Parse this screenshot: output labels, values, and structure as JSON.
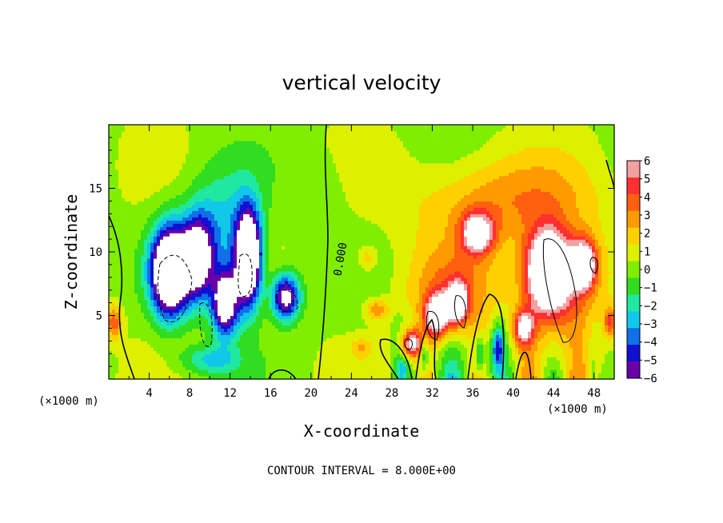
{
  "chart_data": {
    "type": "heatmap",
    "title": "vertical velocity",
    "xlabel": "X-coordinate",
    "ylabel": "Z-coordinate",
    "x_unit_left": "(×1000 m)",
    "x_unit_right": "(×1000 m)",
    "xlim": [
      0,
      50
    ],
    "ylim": [
      0,
      20
    ],
    "x_ticks": [
      4,
      8,
      12,
      16,
      20,
      24,
      28,
      32,
      36,
      40,
      44,
      48
    ],
    "y_ticks": [
      5,
      10,
      15
    ],
    "colorbar": {
      "ticks": [
        6,
        5,
        4,
        3,
        2,
        1,
        0,
        -1,
        -2,
        -3,
        -4,
        -5,
        -6
      ],
      "colors": [
        "#f2a0a0",
        "#ff3030",
        "#ff6010",
        "#ff9a00",
        "#ffd000",
        "#ddf000",
        "#80ee00",
        "#30dd20",
        "#20e8a0",
        "#10c8e8",
        "#1070e8",
        "#1010d0",
        "#6a00a8"
      ]
    },
    "contour_label": "0.000",
    "footer": "CONTOUR INTERVAL = 8.000E+00",
    "regions": [
      {
        "x": 6.0,
        "z": 8.5,
        "w": -12,
        "sx": 1.8,
        "sz": 3.4
      },
      {
        "x": 8.8,
        "z": 9.5,
        "w": -8,
        "sx": 1.6,
        "sz": 3.2
      },
      {
        "x": 11.5,
        "z": 6.0,
        "w": -9,
        "sx": 1.3,
        "sz": 2.6
      },
      {
        "x": 13.8,
        "z": 9.5,
        "w": -12,
        "sx": 1.3,
        "sz": 3.8
      },
      {
        "x": 17.5,
        "z": 6.5,
        "w": -8,
        "sx": 1.4,
        "sz": 1.8
      },
      {
        "x": 11.0,
        "z": 12.0,
        "w": -3,
        "sx": 3.5,
        "sz": 4.5
      },
      {
        "x": 10.0,
        "z": 1.5,
        "w": -3,
        "sx": 3.0,
        "sz": 1.2
      },
      {
        "x": 43.5,
        "z": 8.5,
        "w": 11,
        "sx": 2.2,
        "sz": 3.2
      },
      {
        "x": 47.0,
        "z": 9.0,
        "w": 8,
        "sx": 1.3,
        "sz": 2.0
      },
      {
        "x": 36.5,
        "z": 11.5,
        "w": 7,
        "sx": 1.6,
        "sz": 1.6
      },
      {
        "x": 32.5,
        "z": 5.0,
        "w": 8,
        "sx": 1.2,
        "sz": 1.6
      },
      {
        "x": 34.5,
        "z": 6.0,
        "w": 7,
        "sx": 1.0,
        "sz": 1.6
      },
      {
        "x": 30.0,
        "z": 2.8,
        "w": 7,
        "sx": 1.0,
        "sz": 1.1
      },
      {
        "x": 41.0,
        "z": 4.0,
        "w": 6,
        "sx": 1.0,
        "sz": 1.4
      },
      {
        "x": 39.0,
        "z": 14.0,
        "w": 3,
        "sx": 9.0,
        "sz": 3.5
      },
      {
        "x": 34.0,
        "z": 7.0,
        "w": 3,
        "sx": 4.5,
        "sz": 3.5
      },
      {
        "x": 45.0,
        "z": 7.0,
        "w": 3,
        "sx": 4.0,
        "sz": 4.5
      },
      {
        "x": 38.5,
        "z": 2.5,
        "w": -5,
        "sx": 0.6,
        "sz": 1.6
      },
      {
        "x": 31.2,
        "z": 2.0,
        "w": -3,
        "sx": 0.4,
        "sz": 1.3
      },
      {
        "x": 36.7,
        "z": 2.0,
        "w": -3,
        "sx": 0.4,
        "sz": 1.3
      },
      {
        "x": 29.0,
        "z": 1.0,
        "w": -2,
        "sx": 0.5,
        "sz": 0.8
      },
      {
        "x": 0.5,
        "z": 4.5,
        "w": 4,
        "sx": 0.8,
        "sz": 1.3
      },
      {
        "x": 49.6,
        "z": 4.5,
        "w": 4,
        "sx": 0.6,
        "sz": 1.2
      },
      {
        "x": 26.5,
        "z": 5.5,
        "w": 3,
        "sx": 1.2,
        "sz": 0.8
      },
      {
        "x": 25.5,
        "z": 9.5,
        "w": 2,
        "sx": 1.0,
        "sz": 1.0
      },
      {
        "x": 25.0,
        "z": 2.5,
        "w": 2,
        "sx": 1.0,
        "sz": 0.8
      },
      {
        "x": 21.0,
        "z": 15.0,
        "w": -1,
        "sx": 2.5,
        "sz": 3.0
      }
    ]
  }
}
